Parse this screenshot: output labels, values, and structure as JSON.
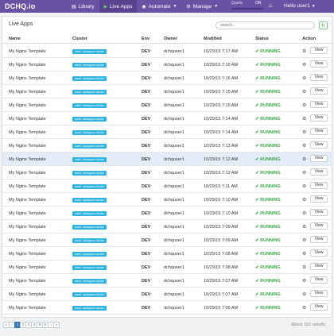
{
  "nav": {
    "brand": "DCHQ.io",
    "items": [
      {
        "label": "Library",
        "icon": "book-icon"
      },
      {
        "label": "Live Apps",
        "icon": "play-icon"
      },
      {
        "label": "Automate",
        "icon": "robot-icon"
      },
      {
        "label": "Manage",
        "icon": "gear-icon"
      }
    ],
    "quota_label": "Quota",
    "quota_state": "ON",
    "user": "Hello user1"
  },
  "panel": {
    "title": "Live Apps",
    "search_placeholder": "search..."
  },
  "table": {
    "headers": [
      "Name",
      "Cluster",
      "Env",
      "Owner",
      "Modified",
      "Status",
      "Action"
    ],
    "rows": [
      {
        "name": "My Nginx Template",
        "cluster": "user1 rackspace cluster",
        "env": "DEV",
        "owner": "dchquser1",
        "modified": "10/29/15 7:17 AM",
        "status": "RUNNING",
        "action": "View"
      },
      {
        "name": "My Nginx Template",
        "cluster": "user1 rackspace cluster",
        "env": "DEV",
        "owner": "dchquser1",
        "modified": "10/29/15 7:16 AM",
        "status": "RUNNING",
        "action": "View"
      },
      {
        "name": "My Nginx Template",
        "cluster": "user1 rackspace cluster",
        "env": "DEV",
        "owner": "dchquser1",
        "modified": "10/29/15 7:16 AM",
        "status": "RUNNING",
        "action": "View"
      },
      {
        "name": "My Nginx Template",
        "cluster": "user1 rackspace cluster",
        "env": "DEV",
        "owner": "dchquser1",
        "modified": "10/29/15 7:15 AM",
        "status": "RUNNING",
        "action": "View"
      },
      {
        "name": "My Nginx Template",
        "cluster": "user1 rackspace cluster",
        "env": "DEV",
        "owner": "dchquser1",
        "modified": "10/29/15 7:15 AM",
        "status": "RUNNING",
        "action": "View"
      },
      {
        "name": "My Nginx Template",
        "cluster": "user1 rackspace cluster",
        "env": "DEV",
        "owner": "dchquser1",
        "modified": "10/29/15 7:14 AM",
        "status": "RUNNING",
        "action": "View"
      },
      {
        "name": "My Nginx Template",
        "cluster": "user1 rackspace cluster",
        "env": "DEV",
        "owner": "dchquser1",
        "modified": "10/29/15 7:14 AM",
        "status": "RUNNING",
        "action": "View"
      },
      {
        "name": "My Nginx Template",
        "cluster": "user1 rackspace cluster",
        "env": "DEV",
        "owner": "dchquser1",
        "modified": "10/29/15 7:13 AM",
        "status": "RUNNING",
        "action": "View"
      },
      {
        "name": "My Nginx Template",
        "cluster": "user1 rackspace cluster",
        "env": "DEV",
        "owner": "dchquser1",
        "modified": "10/29/15 7:12 AM",
        "status": "RUNNING",
        "action": "View",
        "highlighted": true
      },
      {
        "name": "My Nginx Template",
        "cluster": "user1 rackspace cluster",
        "env": "DEV",
        "owner": "dchquser1",
        "modified": "10/29/15 7:12 AM",
        "status": "RUNNING",
        "action": "View"
      },
      {
        "name": "My Nginx Template",
        "cluster": "user1 rackspace cluster",
        "env": "DEV",
        "owner": "dchquser1",
        "modified": "10/29/15 7:11 AM",
        "status": "RUNNING",
        "action": "View"
      },
      {
        "name": "My Nginx Template",
        "cluster": "user1 rackspace cluster",
        "env": "DEV",
        "owner": "dchquser1",
        "modified": "10/29/15 7:10 AM",
        "status": "RUNNING",
        "action": "View"
      },
      {
        "name": "My Nginx Template",
        "cluster": "user1 rackspace cluster",
        "env": "DEV",
        "owner": "dchquser1",
        "modified": "10/29/15 7:10 AM",
        "status": "RUNNING",
        "action": "View"
      },
      {
        "name": "My Nginx Template",
        "cluster": "user1 rackspace cluster",
        "env": "DEV",
        "owner": "dchquser1",
        "modified": "10/29/15 7:09 AM",
        "status": "RUNNING",
        "action": "View"
      },
      {
        "name": "My Nginx Template",
        "cluster": "user1 rackspace cluster",
        "env": "DEV",
        "owner": "dchquser1",
        "modified": "10/29/15 7:09 AM",
        "status": "RUNNING",
        "action": "View"
      },
      {
        "name": "My Nginx Template",
        "cluster": "user1 rackspace cluster",
        "env": "DEV",
        "owner": "dchquser1",
        "modified": "10/29/15 7:08 AM",
        "status": "RUNNING",
        "action": "View"
      },
      {
        "name": "My Nginx Template",
        "cluster": "user1 rackspace cluster",
        "env": "DEV",
        "owner": "dchquser1",
        "modified": "10/29/15 7:08 AM",
        "status": "RUNNING",
        "action": "View"
      },
      {
        "name": "My Nginx Template",
        "cluster": "user1 rackspace cluster",
        "env": "DEV",
        "owner": "dchquser1",
        "modified": "10/29/15 7:07 AM",
        "status": "RUNNING",
        "action": "View"
      },
      {
        "name": "My Nginx Template",
        "cluster": "user1 rackspace cluster",
        "env": "DEV",
        "owner": "dchquser1",
        "modified": "10/29/15 7:07 AM",
        "status": "RUNNING",
        "action": "View"
      },
      {
        "name": "My Nginx Template",
        "cluster": "user1 rackspace cluster",
        "env": "DEV",
        "owner": "dchquser1",
        "modified": "10/29/15 7:06 AM",
        "status": "RUNNING",
        "action": "View"
      }
    ]
  },
  "pagination": {
    "pages": [
      "«",
      "‹",
      "1",
      "2",
      "3",
      "4",
      "5",
      "6",
      "›",
      "»"
    ],
    "current": "1",
    "about": "About 101 results"
  },
  "colors": {
    "nav_bg": "#6b51a3",
    "badge": "#2eb3e0",
    "running": "#3aa845",
    "highlight_row": "#e4ecf7"
  }
}
